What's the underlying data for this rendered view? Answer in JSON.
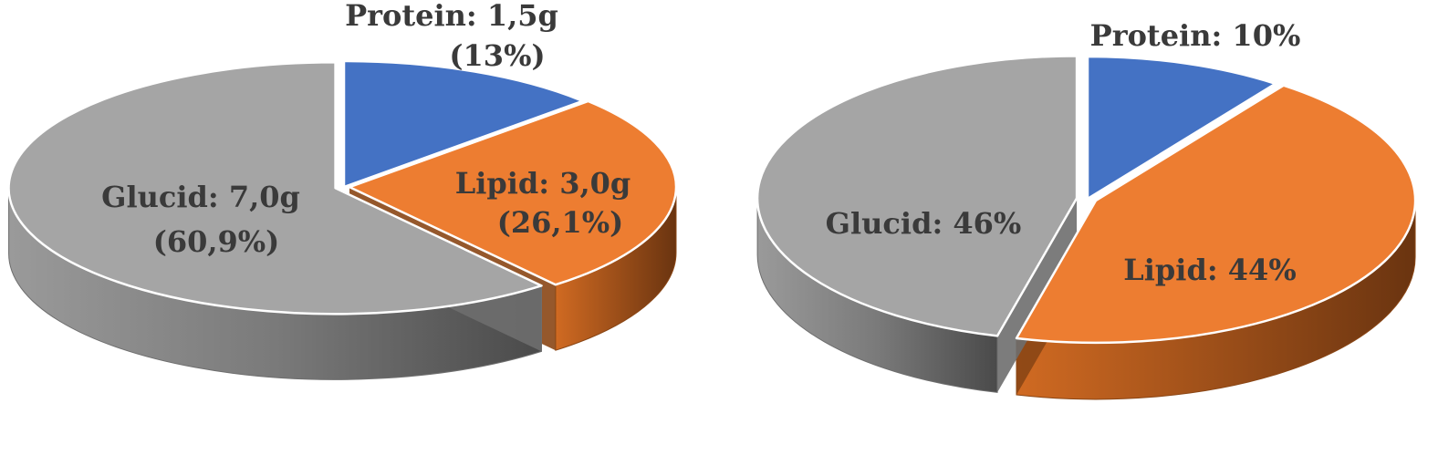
{
  "chart_data": [
    {
      "type": "pie",
      "style": "3d",
      "title": "",
      "slices": [
        {
          "name": "Protein",
          "value": 1.5,
          "unit": "g",
          "percent": 13,
          "color": "#4472c4",
          "label_lines": [
            "Protein: 1,5g",
            "(13%)"
          ]
        },
        {
          "name": "Lipid",
          "value": 3.0,
          "unit": "g",
          "percent": 26.1,
          "color": "#ed7d31",
          "label_lines": [
            "Lipid: 3,0g",
            "(26,1%)"
          ]
        },
        {
          "name": "Glucid",
          "value": 7.0,
          "unit": "g",
          "percent": 60.9,
          "color": "#a5a5a5",
          "label_lines": [
            "Glucid: 7,0g",
            "(60,9%)"
          ]
        }
      ]
    },
    {
      "type": "pie",
      "style": "3d",
      "title": "",
      "slices": [
        {
          "name": "Protein",
          "value": 10,
          "unit": "%",
          "percent": 10,
          "color": "#4472c4",
          "label_lines": [
            "Protein: 10%"
          ]
        },
        {
          "name": "Lipid",
          "value": 44,
          "unit": "%",
          "percent": 44,
          "color": "#ed7d31",
          "label_lines": [
            "Lipid: 44%"
          ]
        },
        {
          "name": "Glucid",
          "value": 46,
          "unit": "%",
          "percent": 46,
          "color": "#a5a5a5",
          "label_lines": [
            "Glucid: 46%"
          ]
        }
      ]
    }
  ]
}
